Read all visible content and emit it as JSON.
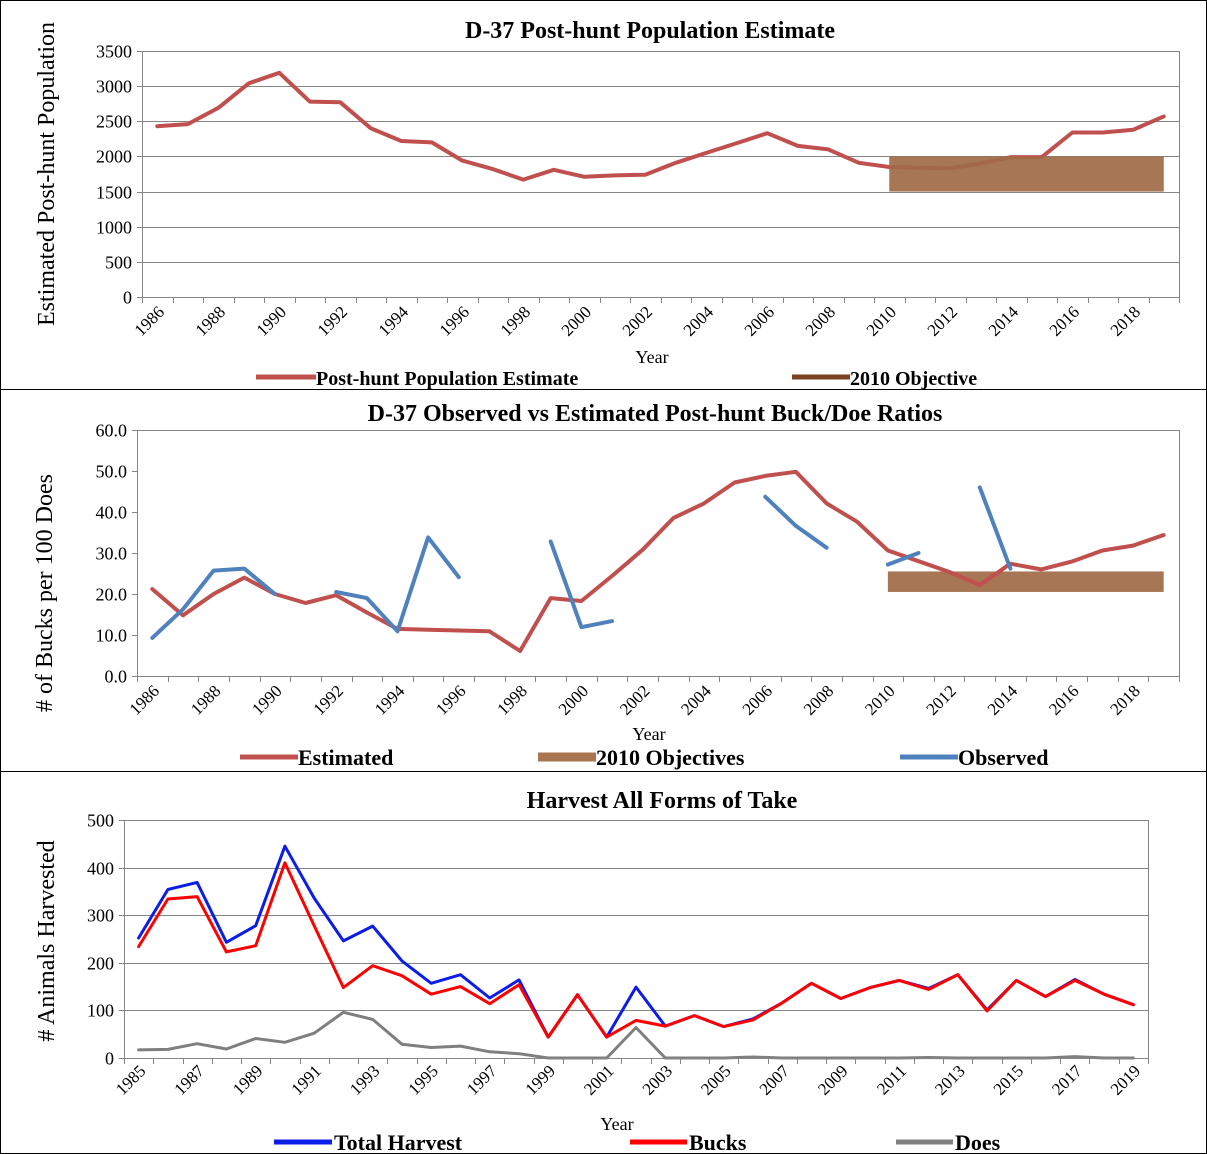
{
  "chart_data": [
    {
      "type": "line",
      "title": "D-37 Post-hunt Population Estimate",
      "xlabel": "Year",
      "ylabel": "Estimated Post-hunt Population",
      "ylim": [
        0,
        3500
      ],
      "yticks": [
        "0",
        "500",
        "1000",
        "1500",
        "2000",
        "2500",
        "3000",
        "3500"
      ],
      "x": [
        1986,
        1987,
        1988,
        1989,
        1990,
        1991,
        1992,
        1993,
        1994,
        1995,
        1996,
        1997,
        1998,
        1999,
        2000,
        2001,
        2002,
        2003,
        2004,
        2005,
        2006,
        2007,
        2008,
        2009,
        2010,
        2011,
        2012,
        2013,
        2014,
        2015,
        2016,
        2017,
        2018,
        2019
      ],
      "xtick_labels": [
        "1986",
        "1988",
        "1990",
        "1992",
        "1994",
        "1996",
        "1998",
        "2000",
        "2002",
        "2004",
        "2006",
        "2008",
        "2010",
        "2012",
        "2014",
        "2016",
        "2018"
      ],
      "grid": true,
      "legend_position": "bottom",
      "series": [
        {
          "name": "Post-hunt Population Estimate",
          "kind": "line",
          "color": "#c0504d",
          "values": [
            2430,
            2460,
            2690,
            3040,
            3190,
            2780,
            2770,
            2400,
            2220,
            2200,
            1940,
            1820,
            1670,
            1810,
            1710,
            1730,
            1740,
            1910,
            2050,
            2190,
            2330,
            2150,
            2100,
            1910,
            1850,
            1840,
            1830,
            1900,
            1990,
            1990,
            2340,
            2340,
            2380,
            2570
          ]
        },
        {
          "name": "2010 Objective",
          "kind": "band",
          "color": "#a06a46",
          "x_range": [
            2010,
            2019
          ],
          "y_range": [
            1500,
            2000
          ]
        }
      ]
    },
    {
      "type": "line",
      "title": "D-37 Observed vs Estimated Post-hunt Buck/Doe Ratios",
      "xlabel": "Year",
      "ylabel": "# of Bucks per 100 Does",
      "ylim": [
        0,
        60
      ],
      "yticks": [
        "0.0",
        "10.0",
        "20.0",
        "30.0",
        "40.0",
        "50.0",
        "60.0"
      ],
      "x": [
        1986,
        1987,
        1988,
        1989,
        1990,
        1991,
        1992,
        1993,
        1994,
        1995,
        1996,
        1997,
        1998,
        1999,
        2000,
        2001,
        2002,
        2003,
        2004,
        2005,
        2006,
        2007,
        2008,
        2009,
        2010,
        2011,
        2012,
        2013,
        2014,
        2015,
        2016,
        2017,
        2018,
        2019
      ],
      "xtick_labels": [
        "1986",
        "1988",
        "1990",
        "1992",
        "1994",
        "1996",
        "1998",
        "2000",
        "2002",
        "2004",
        "2006",
        "2008",
        "2010",
        "2012",
        "2014",
        "2016",
        "2018"
      ],
      "grid": false,
      "legend_position": "bottom",
      "series": [
        {
          "name": "Estimated",
          "kind": "line",
          "color": "#c0504d",
          "values": [
            21.2,
            14.8,
            20.0,
            24.0,
            20.0,
            17.8,
            19.7,
            15.5,
            11.5,
            11.3,
            11.1,
            10.9,
            6.1,
            19.0,
            18.3,
            24.4,
            30.8,
            38.5,
            42.1,
            47.2,
            48.8,
            49.8,
            42.1,
            37.6,
            30.6,
            28.0,
            25.4,
            22.2,
            27.4,
            26.0,
            27.9,
            30.6,
            31.8,
            34.4
          ]
        },
        {
          "name": "2010 Objectives",
          "kind": "band",
          "color": "#a06a46",
          "x_range": [
            2010,
            2019
          ],
          "y_range": [
            20.5,
            25.5
          ]
        },
        {
          "name": "Observed",
          "kind": "line",
          "color": "#4f81bd",
          "values": [
            9.3,
            16.3,
            25.7,
            26.2,
            20.0,
            null,
            20.5,
            19.0,
            10.9,
            33.8,
            24.1,
            null,
            null,
            32.8,
            11.9,
            13.4,
            null,
            null,
            null,
            null,
            43.7,
            36.6,
            31.3,
            null,
            27.2,
            30.0,
            null,
            46.0,
            26.2,
            null,
            null,
            null,
            null,
            null
          ]
        }
      ]
    },
    {
      "type": "line",
      "title": "Harvest All Forms of Take",
      "xlabel": "Year",
      "ylabel": "# Animals Harvested",
      "ylim": [
        0,
        500
      ],
      "yticks": [
        "0",
        "100",
        "200",
        "300",
        "400",
        "500"
      ],
      "x": [
        1985,
        1986,
        1987,
        1988,
        1989,
        1990,
        1991,
        1992,
        1993,
        1994,
        1995,
        1996,
        1997,
        1998,
        1999,
        2000,
        2001,
        2002,
        2003,
        2004,
        2005,
        2006,
        2007,
        2008,
        2009,
        2010,
        2011,
        2012,
        2013,
        2014,
        2015,
        2016,
        2017,
        2018,
        2019
      ],
      "xtick_labels": [
        "1985",
        "1987",
        "1989",
        "1991",
        "1993",
        "1995",
        "1997",
        "1999",
        "2001",
        "2003",
        "2005",
        "2007",
        "2009",
        "2011",
        "2013",
        "2015",
        "2017",
        "2019"
      ],
      "grid": true,
      "legend_position": "bottom",
      "series": [
        {
          "name": "Total Harvest",
          "kind": "line",
          "color": "#0b1de6",
          "values": [
            252,
            354,
            369,
            243,
            278,
            445,
            336,
            246,
            277,
            204,
            157,
            175,
            126,
            164,
            44,
            133,
            44,
            149,
            67,
            89,
            66,
            82,
            116,
            157,
            125,
            148,
            163,
            146,
            175,
            101,
            163,
            129,
            165,
            134,
            112
          ]
        },
        {
          "name": "Bucks",
          "kind": "line",
          "color": "#ff0000",
          "values": [
            234,
            334,
            339,
            223,
            236,
            410,
            278,
            148,
            194,
            173,
            134,
            150,
            114,
            154,
            44,
            133,
            44,
            79,
            67,
            89,
            66,
            80,
            116,
            157,
            125,
            148,
            163,
            144,
            175,
            99,
            163,
            129,
            163,
            134,
            112
          ]
        },
        {
          "name": "Does",
          "kind": "line",
          "color": "#7f7f7f",
          "values": [
            17,
            18,
            30,
            19,
            41,
            33,
            52,
            96,
            81,
            29,
            22,
            25,
            13,
            9,
            0,
            0,
            0,
            64,
            0,
            0,
            0,
            2,
            0,
            0,
            0,
            0,
            0,
            1,
            0,
            0,
            0,
            0,
            3,
            0,
            0
          ]
        }
      ]
    }
  ]
}
